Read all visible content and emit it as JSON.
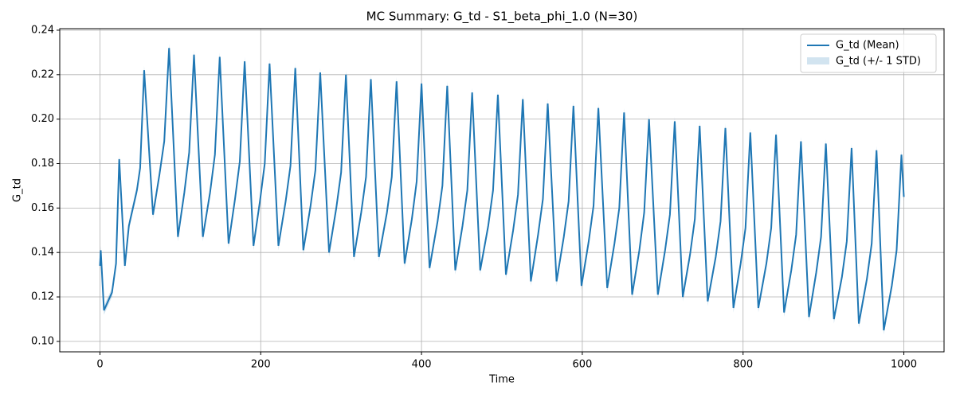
{
  "chart_data": {
    "type": "line",
    "title": "MC Summary: G_td - S1_beta_phi_1.0 (N=30)",
    "xlabel": "Time",
    "ylabel": "G_td",
    "xlim": [
      -50,
      1050
    ],
    "ylim": [
      0.0953,
      0.2407
    ],
    "xticks": [
      0,
      200,
      400,
      600,
      800,
      1000
    ],
    "yticks": [
      {
        "value": 0.1,
        "label": "0.10"
      },
      0.12,
      0.14,
      0.16,
      0.18,
      {
        "value": 0.2,
        "label": "0.20"
      },
      0.22,
      0.24
    ],
    "grid": true,
    "legend": "upper right",
    "x": [
      0,
      1,
      5,
      15,
      20,
      24,
      31,
      36,
      46,
      50,
      55,
      66,
      74,
      80,
      86,
      97,
      105,
      111,
      117,
      128,
      137,
      143,
      149,
      160,
      168,
      174,
      180,
      191,
      199,
      205,
      211,
      222,
      231,
      237,
      243,
      253,
      262,
      268,
      274,
      285,
      294,
      300,
      306,
      316,
      325,
      331,
      337,
      347,
      357,
      363,
      369,
      379,
      388,
      394,
      400,
      410,
      420,
      426,
      432,
      442,
      451,
      457,
      463,
      473,
      483,
      489,
      495,
      505,
      514,
      520,
      526,
      536,
      545,
      551,
      557,
      568,
      577,
      583,
      589,
      599,
      608,
      614,
      620,
      631,
      640,
      646,
      652,
      662,
      671,
      677,
      683,
      694,
      703,
      709,
      715,
      725,
      734,
      740,
      746,
      756,
      766,
      772,
      778,
      788,
      797,
      803,
      809,
      819,
      829,
      835,
      841,
      851,
      860,
      866,
      872,
      882,
      891,
      897,
      903,
      913,
      923,
      929,
      935,
      944,
      954,
      960,
      966,
      975,
      985,
      991,
      997,
      1000
    ],
    "series": [
      {
        "name": "G_td (Mean)",
        "color": "#1f77b4",
        "values": [
          0.134,
          0.141,
          0.114,
          0.122,
          0.135,
          0.182,
          0.134,
          0.152,
          0.168,
          0.178,
          0.222,
          0.157,
          0.175,
          0.19,
          0.232,
          0.147,
          0.167,
          0.185,
          0.229,
          0.147,
          0.167,
          0.184,
          0.228,
          0.144,
          0.164,
          0.181,
          0.226,
          0.143,
          0.163,
          0.18,
          0.225,
          0.143,
          0.163,
          0.179,
          0.223,
          0.141,
          0.161,
          0.177,
          0.221,
          0.14,
          0.16,
          0.176,
          0.22,
          0.138,
          0.158,
          0.174,
          0.218,
          0.138,
          0.158,
          0.174,
          0.217,
          0.135,
          0.155,
          0.172,
          0.216,
          0.133,
          0.154,
          0.17,
          0.215,
          0.132,
          0.152,
          0.168,
          0.212,
          0.132,
          0.152,
          0.168,
          0.211,
          0.13,
          0.15,
          0.166,
          0.209,
          0.127,
          0.148,
          0.164,
          0.207,
          0.127,
          0.147,
          0.163,
          0.206,
          0.125,
          0.145,
          0.161,
          0.205,
          0.124,
          0.144,
          0.16,
          0.203,
          0.121,
          0.141,
          0.158,
          0.2,
          0.121,
          0.141,
          0.157,
          0.199,
          0.12,
          0.139,
          0.155,
          0.197,
          0.118,
          0.138,
          0.154,
          0.196,
          0.115,
          0.135,
          0.151,
          0.194,
          0.115,
          0.135,
          0.151,
          0.193,
          0.113,
          0.132,
          0.148,
          0.19,
          0.111,
          0.131,
          0.147,
          0.189,
          0.11,
          0.129,
          0.145,
          0.187,
          0.108,
          0.128,
          0.144,
          0.186,
          0.105,
          0.125,
          0.141,
          0.184,
          0.165
        ]
      },
      {
        "name": "G_td (+/- 1 STD)",
        "color": "#1f77b4",
        "values": [
          0.002,
          0.002,
          0.002,
          0.002,
          0.002,
          0.002,
          0.002,
          0.002,
          0.002,
          0.002,
          0.002,
          0.002,
          0.002,
          0.002,
          0.002,
          0.002,
          0.002,
          0.002,
          0.002,
          0.002,
          0.002,
          0.002,
          0.002,
          0.002,
          0.002,
          0.002,
          0.002,
          0.002,
          0.002,
          0.002,
          0.002,
          0.002,
          0.002,
          0.002,
          0.002,
          0.002,
          0.002,
          0.002,
          0.002,
          0.002,
          0.002,
          0.002,
          0.002,
          0.002,
          0.002,
          0.002,
          0.002,
          0.002,
          0.002,
          0.002,
          0.002,
          0.002,
          0.002,
          0.002,
          0.002,
          0.002,
          0.002,
          0.002,
          0.002,
          0.002,
          0.002,
          0.002,
          0.002,
          0.002,
          0.002,
          0.002,
          0.002,
          0.002,
          0.002,
          0.002,
          0.002,
          0.002,
          0.002,
          0.002,
          0.002,
          0.002,
          0.002,
          0.002,
          0.002,
          0.002,
          0.002,
          0.002,
          0.002,
          0.002,
          0.002,
          0.002,
          0.002,
          0.002,
          0.002,
          0.002,
          0.002,
          0.002,
          0.002,
          0.002,
          0.002,
          0.002,
          0.002,
          0.002,
          0.002,
          0.002,
          0.002,
          0.002,
          0.002,
          0.002,
          0.002,
          0.002,
          0.002,
          0.002,
          0.002,
          0.002,
          0.002,
          0.002,
          0.002,
          0.002,
          0.002,
          0.002,
          0.002,
          0.002,
          0.002,
          0.002,
          0.002,
          0.002,
          0.002,
          0.002,
          0.002,
          0.002,
          0.002,
          0.002,
          0.002,
          0.002,
          0.002,
          0.002
        ]
      }
    ]
  }
}
